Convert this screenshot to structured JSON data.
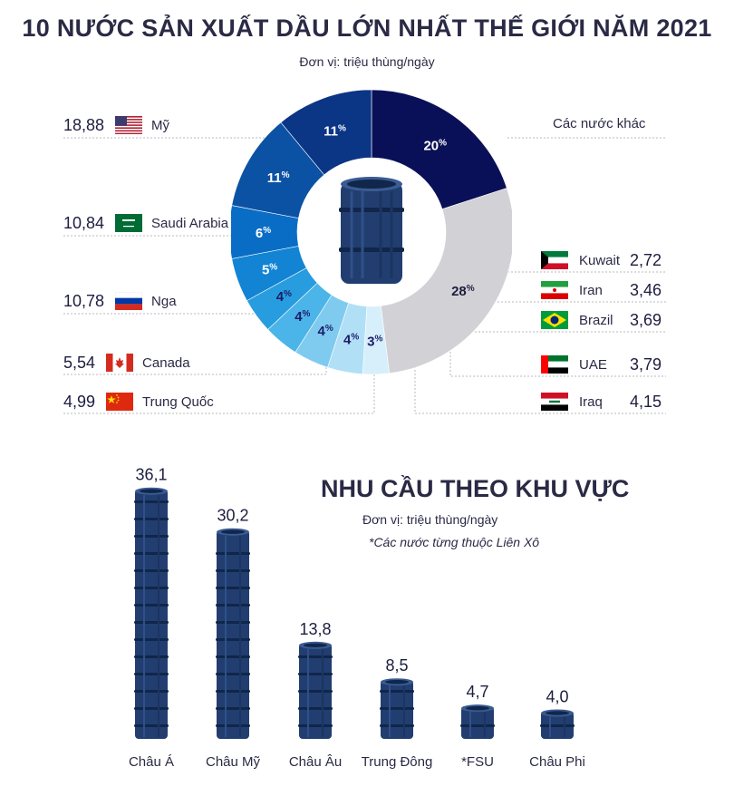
{
  "title": "10 NƯỚC SẢN XUẤT DẦU LỚN NHẤT THẾ GIỚI NĂM 2021",
  "subtitle": "Đơn vị: triệu thùng/ngày",
  "colors": {
    "navy": "#0a1057",
    "other": "#d2d2d6",
    "barrel": "#223e70",
    "barrel_dark": "#10264a"
  },
  "chart_data": [
    {
      "type": "pie",
      "title": "10 NƯỚC SẢN XUẤT DẦU LỚN NHẤT THẾ GIỚI NĂM 2021",
      "unit": "triệu thùng/ngày",
      "percent_symbol": "%",
      "slices": [
        {
          "label": "Mỹ",
          "value": 18.88,
          "value_label": "18,88",
          "percent": 20,
          "color": "#0a1057",
          "flag": "us-flag"
        },
        {
          "label": "Các nước khác",
          "value": null,
          "value_label": "",
          "percent": 28,
          "color": "#d2d2d6",
          "flag": ""
        },
        {
          "label": "Kuwait",
          "value": 2.72,
          "value_label": "2,72",
          "percent": 3,
          "color": "#d7effb",
          "flag": "kuwait-flag"
        },
        {
          "label": "Iran",
          "value": 3.46,
          "value_label": "3,46",
          "percent": 4,
          "color": "#b1e0f6",
          "flag": "iran-flag"
        },
        {
          "label": "Brazil",
          "value": 3.69,
          "value_label": "3,69",
          "percent": 4,
          "color": "#7fcbef",
          "flag": "brazil-flag"
        },
        {
          "label": "UAE",
          "value": 3.79,
          "value_label": "3,79",
          "percent": 4,
          "color": "#4bb4e8",
          "flag": "uae-flag"
        },
        {
          "label": "Iraq",
          "value": 4.15,
          "value_label": "4,15",
          "percent": 4,
          "color": "#279ddf",
          "flag": "iraq-flag"
        },
        {
          "label": "Trung Quốc",
          "value": 4.99,
          "value_label": "4,99",
          "percent": 5,
          "color": "#1284d3",
          "flag": "china-flag"
        },
        {
          "label": "Canada",
          "value": 5.54,
          "value_label": "5,54",
          "percent": 6,
          "color": "#0a6dc5",
          "flag": "canada-flag"
        },
        {
          "label": "Nga",
          "value": 10.78,
          "value_label": "10,78",
          "percent": 11,
          "color": "#0b52a5",
          "flag": "russia-flag"
        },
        {
          "label": "Saudi Arabia",
          "value": 10.84,
          "value_label": "10,84",
          "percent": 11,
          "color": "#0b3585",
          "flag": "saudi-flag"
        }
      ]
    },
    {
      "type": "bar",
      "title": "NHU CẦU THEO KHU VỰC",
      "subtitle": "Đơn vị: triệu thùng/ngày",
      "note": "*Các nước từng thuộc Liên Xô",
      "categories": [
        "Châu Á",
        "Châu Mỹ",
        "Châu Âu",
        "Trung Đông",
        "*FSU",
        "Châu Phi"
      ],
      "values": [
        36.1,
        30.2,
        13.8,
        8.5,
        4.7,
        4.0
      ],
      "value_labels": [
        "36,1",
        "30,2",
        "13,8",
        "8,5",
        "4,7",
        "4,0"
      ],
      "ylim": [
        0,
        40
      ]
    }
  ]
}
